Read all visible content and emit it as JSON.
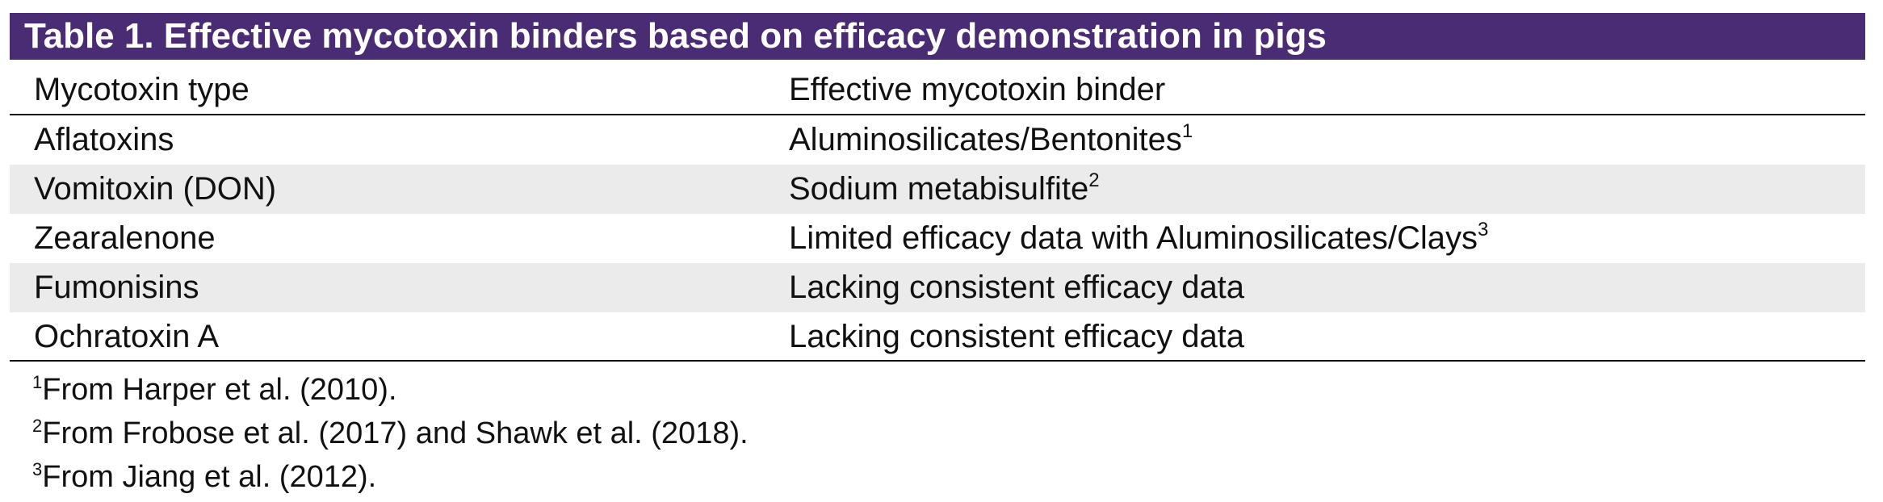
{
  "table": {
    "title": "Table 1. Effective mycotoxin binders based on efficacy demonstration in pigs",
    "headers": [
      "Mycotoxin type",
      "Effective mycotoxin binder"
    ],
    "rows": [
      {
        "type": "Aflatoxins",
        "binder": "Aluminosilicates/Bentonites",
        "ref": "1"
      },
      {
        "type": "Vomitoxin (DON)",
        "binder": "Sodium metabisulfite",
        "ref": "2"
      },
      {
        "type": "Zearalenone",
        "binder": "Limited efficacy data with Aluminosilicates/Clays",
        "ref": "3"
      },
      {
        "type": "Fumonisins",
        "binder": "Lacking consistent efficacy data",
        "ref": ""
      },
      {
        "type": "Ochratoxin A",
        "binder": "Lacking consistent efficacy data",
        "ref": ""
      }
    ],
    "footnotes": [
      {
        "mark": "1",
        "text": "From Harper et al. (2010)."
      },
      {
        "mark": "2",
        "text": "From Frobose et al. (2017) and Shawk et al. (2018)."
      },
      {
        "mark": "3",
        "text": "From Jiang et al. (2012)."
      }
    ],
    "colors": {
      "title_bg": "#4a2c74",
      "title_text": "#ffffff",
      "shaded_row": "#ebebeb"
    }
  }
}
